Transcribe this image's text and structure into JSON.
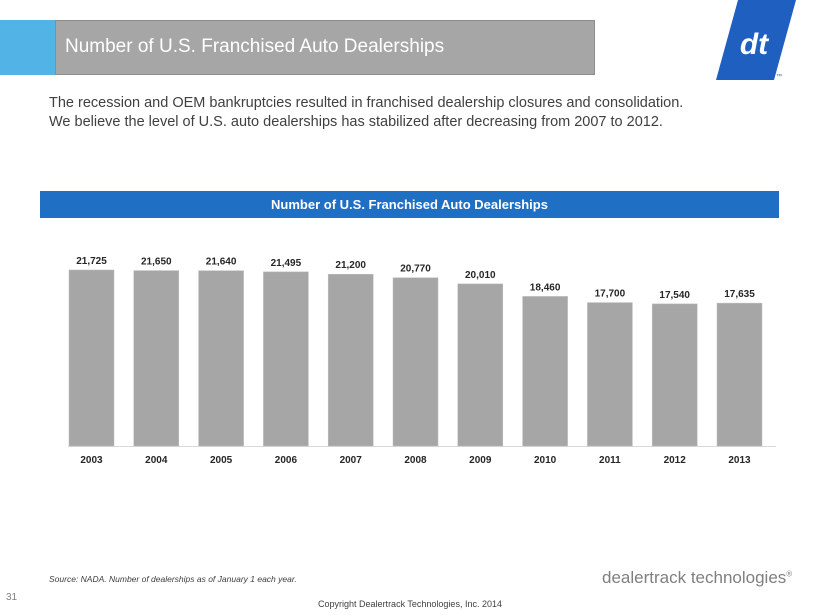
{
  "slide": {
    "title": "Number of U.S. Franchised Auto Dealerships",
    "intro_line1": "The recession and OEM bankruptcies resulted in franchised dealership closures and consolidation.",
    "intro_line2": "We believe the level of U.S. auto dealerships has stabilized after decreasing from 2007 to 2012.",
    "source_note": "Source: NADA.  Number  of dealerships as of January 1 each year.",
    "page_number": "31",
    "copyright": "Copyright Dealertrack Technologies, Inc. 2014",
    "brand_name": "dealertrack technologies",
    "logo_text": "dt",
    "logo_mark_sup": "™",
    "brand_mark_sup": "®"
  },
  "colors": {
    "accent_blue": "#52b4e6",
    "title_bar_gray": "#a6a6a6",
    "chart_header_blue": "#1f6fc5",
    "bar_gray": "#a6a6a6",
    "logo_blue": "#1f5fbf"
  },
  "chart_data": {
    "type": "bar",
    "title": "Number of U.S. Franchised Auto Dealerships",
    "categories": [
      "2003",
      "2004",
      "2005",
      "2006",
      "2007",
      "2008",
      "2009",
      "2010",
      "2011",
      "2012",
      "2013"
    ],
    "values": [
      21725,
      21650,
      21640,
      21495,
      21200,
      20770,
      20010,
      18460,
      17700,
      17540,
      17635
    ],
    "value_labels": [
      "21,725",
      "21,650",
      "21,640",
      "21,495",
      "21,200",
      "20,770",
      "20,010",
      "18,460",
      "17,700",
      "17,540",
      "17,635"
    ],
    "xlabel": "",
    "ylabel": "",
    "ylim": [
      0,
      25300
    ],
    "grid": false,
    "legend": "none"
  }
}
